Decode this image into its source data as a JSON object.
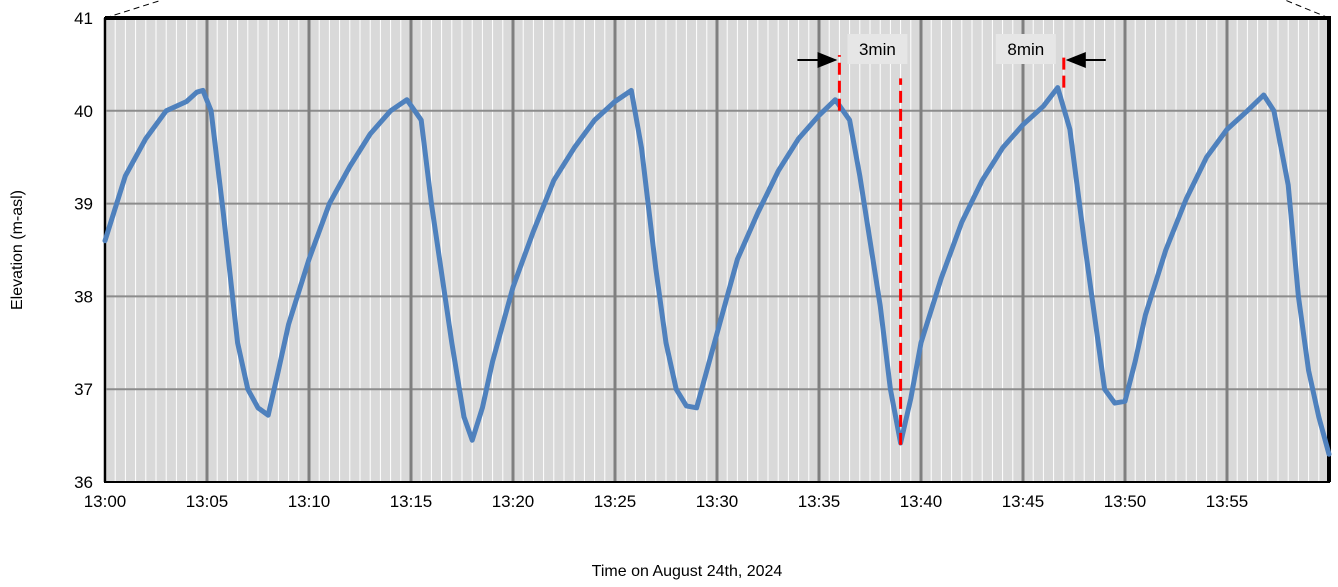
{
  "chart_data": {
    "type": "line",
    "x_label": "Time on August  24th, 2024",
    "y_label": "Elevation (m-asl)",
    "xlim": [
      0,
      60
    ],
    "ylim": [
      36,
      41
    ],
    "xticks": [
      {
        "value": 0,
        "label": "13:00"
      },
      {
        "value": 5,
        "label": "13:05"
      },
      {
        "value": 10,
        "label": "13:10"
      },
      {
        "value": 15,
        "label": "13:15"
      },
      {
        "value": 20,
        "label": "13:20"
      },
      {
        "value": 25,
        "label": "13:25"
      },
      {
        "value": 30,
        "label": "13:30"
      },
      {
        "value": 35,
        "label": "13:35"
      },
      {
        "value": 40,
        "label": "13:40"
      },
      {
        "value": 45,
        "label": "13:45"
      },
      {
        "value": 50,
        "label": "13:50"
      },
      {
        "value": 55,
        "label": "13:55"
      }
    ],
    "yticks": [
      36,
      37,
      38,
      39,
      40,
      41
    ],
    "grid": true,
    "series": [
      {
        "color": "#4f81bd",
        "x": [
          0,
          1,
          2,
          3,
          4,
          4.5,
          4.8,
          5.2,
          5.8,
          6.5,
          7,
          7.5,
          8,
          8.5,
          9,
          10,
          11,
          12,
          13,
          14,
          14.8,
          15.5,
          16,
          17,
          17.6,
          18,
          18.5,
          19,
          20,
          21,
          22,
          23,
          24,
          25,
          25.8,
          26.3,
          27,
          27.5,
          28,
          28.5,
          29,
          29.5,
          30,
          31,
          32,
          33,
          34,
          35,
          35.8,
          36.5,
          37,
          38,
          38.5,
          39,
          39.5,
          40,
          41,
          42,
          43,
          44,
          45,
          46,
          46.7,
          47.3,
          48,
          48.5,
          49,
          49.5,
          50,
          50.5,
          51,
          52,
          53,
          54,
          55,
          56,
          56.8,
          57.3,
          58,
          58.5,
          59,
          59.5,
          60
        ],
        "values": [
          38.6,
          39.3,
          39.7,
          40.0,
          40.1,
          40.2,
          40.22,
          40.0,
          38.9,
          37.5,
          37.0,
          36.8,
          36.72,
          37.2,
          37.7,
          38.4,
          39.0,
          39.4,
          39.75,
          40.0,
          40.12,
          39.9,
          39.0,
          37.5,
          36.7,
          36.45,
          36.8,
          37.3,
          38.1,
          38.7,
          39.25,
          39.6,
          39.9,
          40.1,
          40.22,
          39.6,
          38.3,
          37.5,
          37.0,
          36.82,
          36.8,
          37.2,
          37.6,
          38.4,
          38.9,
          39.35,
          39.7,
          39.95,
          40.12,
          39.9,
          39.3,
          37.9,
          37.0,
          36.42,
          36.9,
          37.5,
          38.2,
          38.8,
          39.25,
          39.6,
          39.85,
          40.05,
          40.25,
          39.8,
          38.6,
          37.8,
          37.0,
          36.85,
          36.87,
          37.3,
          37.8,
          38.5,
          39.05,
          39.5,
          39.8,
          40.0,
          40.17,
          40.0,
          39.2,
          38.0,
          37.2,
          36.7,
          36.3
        ]
      }
    ],
    "reference_lines": [
      {
        "x": 36,
        "y": [
          40.0,
          40.6
        ]
      },
      {
        "x": 39,
        "y": [
          36.4,
          40.35
        ]
      },
      {
        "x": 47,
        "y": [
          40.25,
          40.6
        ]
      }
    ],
    "annotations": [
      {
        "text": "3min",
        "x": 36
      },
      {
        "text": "8min",
        "x": 47
      }
    ]
  }
}
